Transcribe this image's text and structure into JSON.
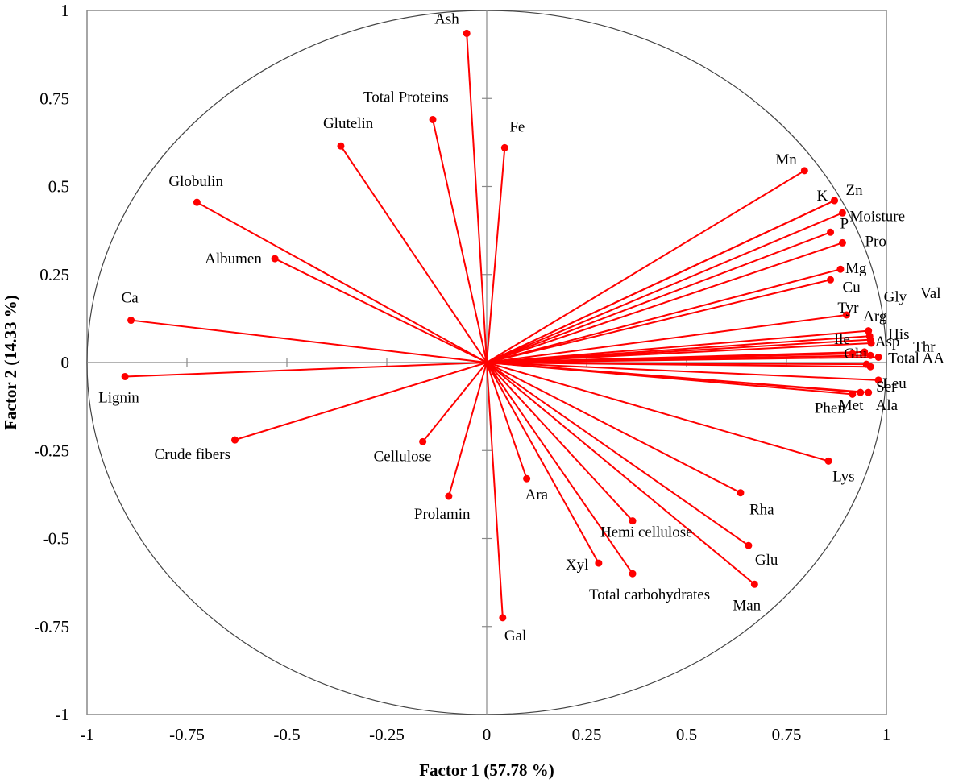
{
  "chart_data": {
    "type": "scatter",
    "subtype": "pca-correlation-circle",
    "xlabel": "Factor 1 (57.78 %)",
    "ylabel": "Factor 2 (14.33 %)",
    "xlim": [
      -1,
      1
    ],
    "ylim": [
      -1,
      1
    ],
    "xticks": [
      "-1",
      "-0.75",
      "-0.5",
      "-0.25",
      "0",
      "0.25",
      "0.5",
      "0.75",
      "1"
    ],
    "yticks": [
      "1",
      "0.75",
      "0.5",
      "0.25",
      "0",
      "-0.25",
      "-0.5",
      "-0.75",
      "-1"
    ],
    "grid": false,
    "unit_circle": true,
    "colors": {
      "vector": "#ff0000",
      "circle": "#444444",
      "frame": "#888888",
      "text": "#000000"
    },
    "points": [
      {
        "label": "Ash",
        "x": -0.05,
        "y": 0.935
      },
      {
        "label": "Total Proteins",
        "x": -0.135,
        "y": 0.69
      },
      {
        "label": "Fe",
        "x": 0.045,
        "y": 0.61
      },
      {
        "label": "Glutelin",
        "x": -0.365,
        "y": 0.615
      },
      {
        "label": "Globulin",
        "x": -0.725,
        "y": 0.455
      },
      {
        "label": "Albumen",
        "x": -0.53,
        "y": 0.295
      },
      {
        "label": "Ca",
        "x": -0.89,
        "y": 0.12
      },
      {
        "label": "Lignin",
        "x": -0.905,
        "y": -0.04
      },
      {
        "label": "Crude fibers",
        "x": -0.63,
        "y": -0.22
      },
      {
        "label": "Cellulose",
        "x": -0.16,
        "y": -0.225
      },
      {
        "label": "Prolamin",
        "x": -0.095,
        "y": -0.38
      },
      {
        "label": "Ara",
        "x": 0.1,
        "y": -0.33
      },
      {
        "label": "Gal",
        "x": 0.04,
        "y": -0.725
      },
      {
        "label": "Xyl",
        "x": 0.28,
        "y": -0.57
      },
      {
        "label": "Total carbohydrates",
        "x": 0.365,
        "y": -0.6
      },
      {
        "label": "Hemi cellulose",
        "x": 0.365,
        "y": -0.45
      },
      {
        "label": "Rha",
        "x": 0.635,
        "y": -0.37
      },
      {
        "label": "Glu",
        "x": 0.655,
        "y": -0.52
      },
      {
        "label": "Man",
        "x": 0.67,
        "y": -0.63
      },
      {
        "label": "Lys",
        "x": 0.855,
        "y": -0.28
      },
      {
        "label": "Mn",
        "x": 0.795,
        "y": 0.545
      },
      {
        "label": "Zn",
        "x": 0.87,
        "y": 0.46
      },
      {
        "label": "K",
        "x": 0.87,
        "y": 0.46
      },
      {
        "label": "Moisture",
        "x": 0.89,
        "y": 0.425
      },
      {
        "label": "P",
        "x": 0.86,
        "y": 0.37
      },
      {
        "label": "Pro",
        "x": 0.89,
        "y": 0.34
      },
      {
        "label": "Mg",
        "x": 0.885,
        "y": 0.265
      },
      {
        "label": "Cu",
        "x": 0.86,
        "y": 0.235
      },
      {
        "label": "Tyr",
        "x": 0.9,
        "y": 0.135
      },
      {
        "label": "Gly",
        "x": 0.955,
        "y": 0.09
      },
      {
        "label": "Val",
        "x": 0.958,
        "y": 0.075
      },
      {
        "label": "Arg",
        "x": 0.96,
        "y": 0.065
      },
      {
        "label": "His",
        "x": 0.962,
        "y": 0.055
      },
      {
        "label": "Ile",
        "x": 0.915,
        "y": 0.025
      },
      {
        "label": "Asp",
        "x": 0.945,
        "y": 0.03
      },
      {
        "label": "Thr",
        "x": 0.96,
        "y": 0.02
      },
      {
        "label": "Glu",
        "x": 0.95,
        "y": -0.005
      },
      {
        "label": "Total AA",
        "x": 0.98,
        "y": 0.015
      },
      {
        "label": "Leu",
        "x": 0.96,
        "y": -0.012
      },
      {
        "label": "Ser",
        "x": 0.98,
        "y": -0.05
      },
      {
        "label": "Phen",
        "x": 0.915,
        "y": -0.09
      },
      {
        "label": "Met",
        "x": 0.935,
        "y": -0.085
      },
      {
        "label": "Ala",
        "x": 0.955,
        "y": -0.085
      }
    ]
  }
}
